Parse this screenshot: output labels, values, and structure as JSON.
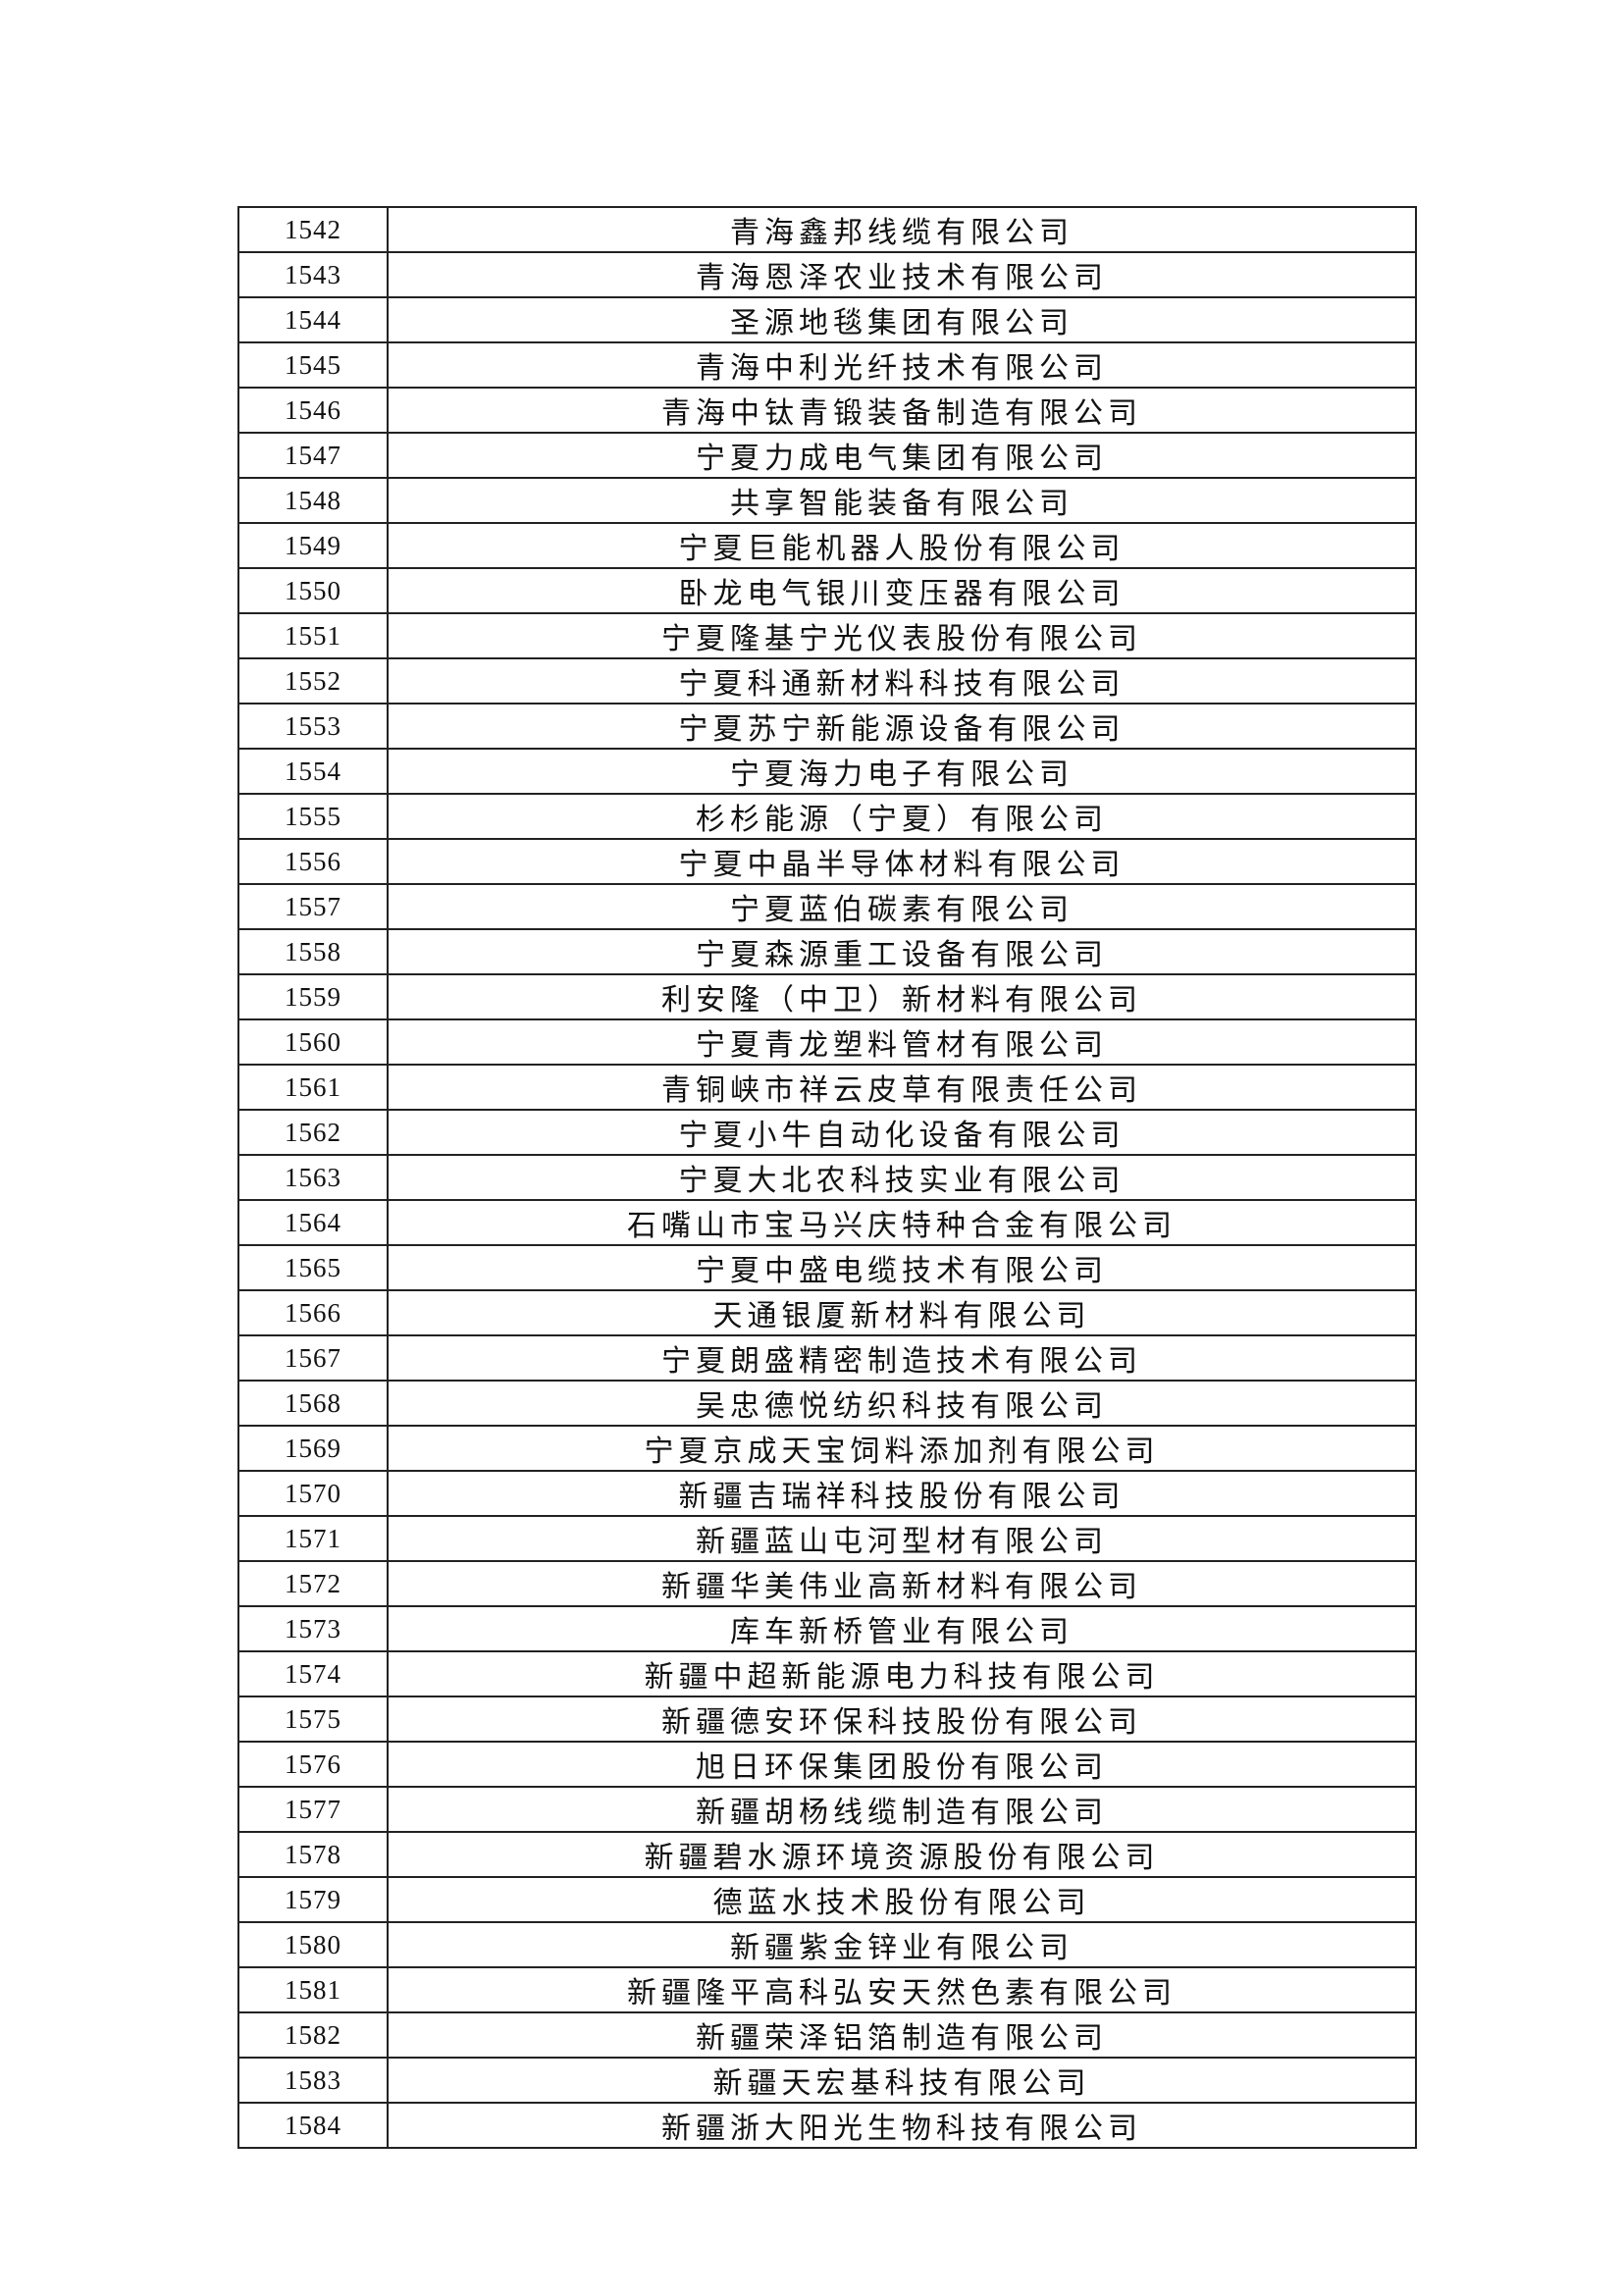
{
  "table": {
    "rows": [
      {
        "no": "1542",
        "name": "青海鑫邦线缆有限公司"
      },
      {
        "no": "1543",
        "name": "青海恩泽农业技术有限公司"
      },
      {
        "no": "1544",
        "name": "圣源地毯集团有限公司"
      },
      {
        "no": "1545",
        "name": "青海中利光纤技术有限公司"
      },
      {
        "no": "1546",
        "name": "青海中钛青锻装备制造有限公司"
      },
      {
        "no": "1547",
        "name": "宁夏力成电气集团有限公司"
      },
      {
        "no": "1548",
        "name": "共享智能装备有限公司"
      },
      {
        "no": "1549",
        "name": "宁夏巨能机器人股份有限公司"
      },
      {
        "no": "1550",
        "name": "卧龙电气银川变压器有限公司"
      },
      {
        "no": "1551",
        "name": "宁夏隆基宁光仪表股份有限公司"
      },
      {
        "no": "1552",
        "name": "宁夏科通新材料科技有限公司"
      },
      {
        "no": "1553",
        "name": "宁夏苏宁新能源设备有限公司"
      },
      {
        "no": "1554",
        "name": "宁夏海力电子有限公司"
      },
      {
        "no": "1555",
        "name": "杉杉能源（宁夏）有限公司"
      },
      {
        "no": "1556",
        "name": "宁夏中晶半导体材料有限公司"
      },
      {
        "no": "1557",
        "name": "宁夏蓝伯碳素有限公司"
      },
      {
        "no": "1558",
        "name": "宁夏森源重工设备有限公司"
      },
      {
        "no": "1559",
        "name": "利安隆（中卫）新材料有限公司"
      },
      {
        "no": "1560",
        "name": "宁夏青龙塑料管材有限公司"
      },
      {
        "no": "1561",
        "name": "青铜峡市祥云皮草有限责任公司"
      },
      {
        "no": "1562",
        "name": "宁夏小牛自动化设备有限公司"
      },
      {
        "no": "1563",
        "name": "宁夏大北农科技实业有限公司"
      },
      {
        "no": "1564",
        "name": "石嘴山市宝马兴庆特种合金有限公司"
      },
      {
        "no": "1565",
        "name": "宁夏中盛电缆技术有限公司"
      },
      {
        "no": "1566",
        "name": "天通银厦新材料有限公司"
      },
      {
        "no": "1567",
        "name": "宁夏朗盛精密制造技术有限公司"
      },
      {
        "no": "1568",
        "name": "吴忠德悦纺织科技有限公司"
      },
      {
        "no": "1569",
        "name": "宁夏京成天宝饲料添加剂有限公司"
      },
      {
        "no": "1570",
        "name": "新疆吉瑞祥科技股份有限公司"
      },
      {
        "no": "1571",
        "name": "新疆蓝山屯河型材有限公司"
      },
      {
        "no": "1572",
        "name": "新疆华美伟业高新材料有限公司"
      },
      {
        "no": "1573",
        "name": "库车新桥管业有限公司"
      },
      {
        "no": "1574",
        "name": "新疆中超新能源电力科技有限公司"
      },
      {
        "no": "1575",
        "name": "新疆德安环保科技股份有限公司"
      },
      {
        "no": "1576",
        "name": "旭日环保集团股份有限公司"
      },
      {
        "no": "1577",
        "name": "新疆胡杨线缆制造有限公司"
      },
      {
        "no": "1578",
        "name": "新疆碧水源环境资源股份有限公司"
      },
      {
        "no": "1579",
        "name": "德蓝水技术股份有限公司"
      },
      {
        "no": "1580",
        "name": "新疆紫金锌业有限公司"
      },
      {
        "no": "1581",
        "name": "新疆隆平高科弘安天然色素有限公司"
      },
      {
        "no": "1582",
        "name": "新疆荣泽铝箔制造有限公司"
      },
      {
        "no": "1583",
        "name": "新疆天宏基科技有限公司"
      },
      {
        "no": "1584",
        "name": "新疆浙大阳光生物科技有限公司"
      }
    ]
  }
}
